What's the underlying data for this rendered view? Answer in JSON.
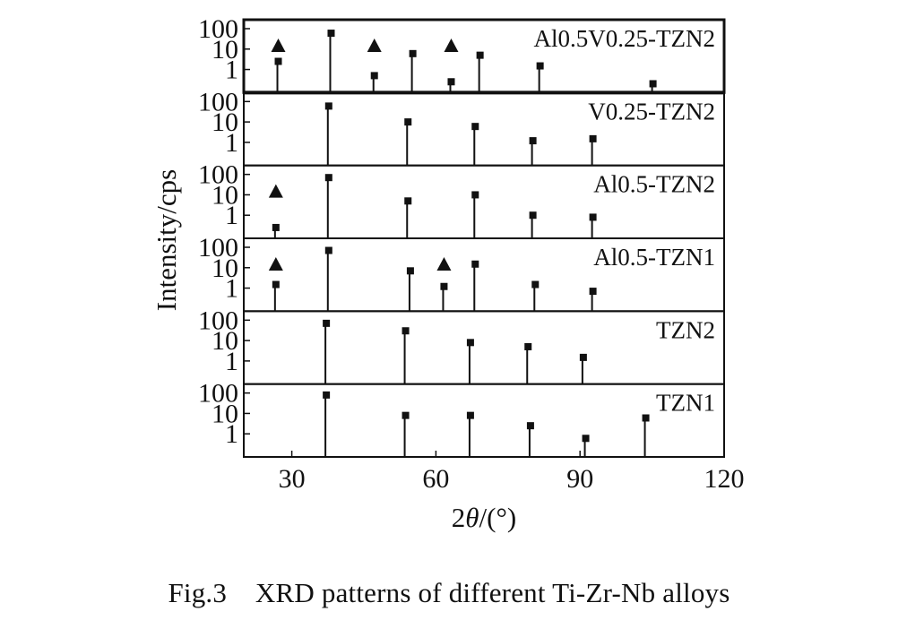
{
  "caption": "Fig.3    XRD patterns of different Ti-Zr-Nb alloys",
  "chart_data": {
    "type": "stacked-stem",
    "xlabel": "2θ/(°)",
    "xlabel_prefix": "2",
    "xlabel_symbol": "θ",
    "xlabel_suffix": "/(°)",
    "ylabel": "Intensity/cps",
    "xlim": [
      20,
      120
    ],
    "xticks": [
      30,
      60,
      90,
      120
    ],
    "ylim": [
      0.1,
      100
    ],
    "yscale": "log",
    "yticks": [
      1,
      10,
      100
    ],
    "marker_legend_phase": "▲",
    "panels": [
      {
        "label": "Al0.5V0.25-TZN2",
        "peaks": [
          {
            "x": 27,
            "y": 2.5
          },
          {
            "x": 38,
            "y": 60
          },
          {
            "x": 47,
            "y": 0.5
          },
          {
            "x": 55,
            "y": 6
          },
          {
            "x": 63,
            "y": 0.25
          },
          {
            "x": 69,
            "y": 5
          },
          {
            "x": 81.5,
            "y": 1.5
          },
          {
            "x": 105,
            "y": 0.2
          }
        ],
        "triangles": [
          27,
          47,
          63
        ]
      },
      {
        "label": "V0.25-TZN2",
        "peaks": [
          {
            "x": 37.5,
            "y": 60
          },
          {
            "x": 54,
            "y": 10
          },
          {
            "x": 68,
            "y": 6
          },
          {
            "x": 80,
            "y": 1.2
          },
          {
            "x": 92.5,
            "y": 1.5
          }
        ],
        "triangles": []
      },
      {
        "label": "Al0.5-TZN2",
        "peaks": [
          {
            "x": 26.5,
            "y": 0.25
          },
          {
            "x": 37.5,
            "y": 70
          },
          {
            "x": 54,
            "y": 5
          },
          {
            "x": 68,
            "y": 10
          },
          {
            "x": 80,
            "y": 1.0
          },
          {
            "x": 92.5,
            "y": 0.8
          }
        ],
        "triangles": [
          26.5
        ]
      },
      {
        "label": "Al0.5-TZN1",
        "peaks": [
          {
            "x": 26.5,
            "y": 1.5
          },
          {
            "x": 37.5,
            "y": 70
          },
          {
            "x": 54.5,
            "y": 7
          },
          {
            "x": 61.5,
            "y": 1.2
          },
          {
            "x": 68,
            "y": 15
          },
          {
            "x": 80.5,
            "y": 1.5
          },
          {
            "x": 92.5,
            "y": 0.7
          }
        ],
        "triangles": [
          26.5,
          61.5
        ]
      },
      {
        "label": "TZN2",
        "peaks": [
          {
            "x": 37,
            "y": 70
          },
          {
            "x": 53.5,
            "y": 30
          },
          {
            "x": 67,
            "y": 8
          },
          {
            "x": 79,
            "y": 5
          },
          {
            "x": 90.5,
            "y": 1.5
          }
        ],
        "triangles": []
      },
      {
        "label": "TZN1",
        "peaks": [
          {
            "x": 37,
            "y": 80
          },
          {
            "x": 53.5,
            "y": 8
          },
          {
            "x": 67,
            "y": 8
          },
          {
            "x": 79.5,
            "y": 2.5
          },
          {
            "x": 91,
            "y": 0.6
          },
          {
            "x": 103.5,
            "y": 6
          }
        ],
        "triangles": []
      }
    ]
  }
}
